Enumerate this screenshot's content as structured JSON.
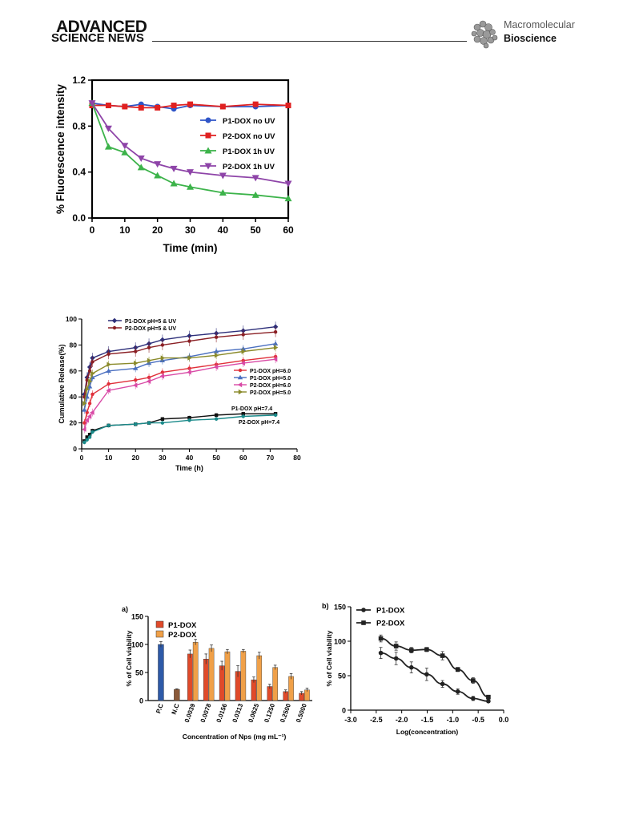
{
  "header": {
    "brand_line1": "ADVANCED",
    "brand_line2": "SCIENCE NEWS",
    "journal_line1": "Macromolecular",
    "journal_line2": "Bioscience",
    "colors": {
      "rule": "#333333",
      "journal_gray": "#555555"
    }
  },
  "chart_data": [
    {
      "type": "line",
      "id": "fluorescence",
      "title": "",
      "xlabel": "Time (min)",
      "ylabel": "% Fluorescence intensity",
      "xlim": [
        0,
        60
      ],
      "ylim": [
        0,
        1.2
      ],
      "xticks": [
        "0",
        "10",
        "20",
        "30",
        "40",
        "50",
        "60"
      ],
      "yticks": [
        "0.0",
        "0.4",
        "0.8",
        "1.2"
      ],
      "legend_position": "right-middle",
      "x": [
        0,
        5,
        10,
        15,
        20,
        25,
        30,
        40,
        50,
        60
      ],
      "series": [
        {
          "name": "P1-DOX no UV",
          "color": "#2f55c8",
          "marker": "circle",
          "values": [
            1.0,
            0.98,
            0.97,
            0.99,
            0.97,
            0.95,
            0.98,
            0.97,
            0.97,
            0.98
          ]
        },
        {
          "name": "P2-DOX no UV",
          "color": "#e02020",
          "marker": "square",
          "values": [
            0.98,
            0.98,
            0.97,
            0.96,
            0.96,
            0.98,
            0.99,
            0.97,
            0.99,
            0.98
          ]
        },
        {
          "name": "P1-DOX 1h UV",
          "color": "#3cb34a",
          "marker": "triangle-up",
          "values": [
            1.0,
            0.62,
            0.57,
            0.44,
            0.37,
            0.3,
            0.27,
            0.22,
            0.2,
            0.17
          ]
        },
        {
          "name": "P2-DOX 1h UV",
          "color": "#8e44a8",
          "marker": "triangle-down",
          "values": [
            1.0,
            0.78,
            0.63,
            0.52,
            0.47,
            0.43,
            0.4,
            0.37,
            0.35,
            0.3
          ]
        }
      ]
    },
    {
      "type": "line",
      "id": "release",
      "title": "",
      "xlabel": "Time (h)",
      "ylabel": "Cumulative Release(%)",
      "xlim": [
        0,
        80
      ],
      "ylim": [
        0,
        100
      ],
      "xticks": [
        "0",
        "10",
        "20",
        "30",
        "40",
        "50",
        "60",
        "70",
        "80"
      ],
      "yticks": [
        "0",
        "20",
        "40",
        "60",
        "80",
        "100"
      ],
      "x": [
        1,
        2,
        3,
        4,
        10,
        20,
        25,
        30,
        40,
        50,
        60,
        72
      ],
      "series": [
        {
          "name": "P1-DOX pH=5 & UV",
          "color": "#2d2f7a",
          "marker": "diamond",
          "legend": "top",
          "values": [
            42,
            55,
            63,
            70,
            75,
            78,
            81,
            84,
            87,
            89,
            91,
            94
          ],
          "error": 4
        },
        {
          "name": "P2-DOX pH=5 & UV",
          "color": "#8a1f24",
          "marker": "circle",
          "legend": "top",
          "values": [
            40,
            53,
            60,
            67,
            73,
            75,
            78,
            80,
            83,
            86,
            88,
            90
          ],
          "error": 4
        },
        {
          "name": "P1-DOX pH=6.0",
          "color": "#e0303a",
          "marker": "circle",
          "legend": "right",
          "values": [
            20,
            28,
            35,
            42,
            50,
            53,
            55,
            59,
            62,
            65,
            68,
            71
          ],
          "error": 3
        },
        {
          "name": "P1-DOX pH=5.0",
          "color": "#4a6fc0",
          "marker": "triangle-up",
          "legend": "right",
          "values": [
            30,
            40,
            48,
            55,
            60,
            62,
            66,
            68,
            71,
            75,
            77,
            81
          ],
          "error": 3
        },
        {
          "name": "P2-DOX pH=6.0",
          "color": "#d94aa6",
          "marker": "triangle-left",
          "legend": "right",
          "values": [
            15,
            22,
            25,
            28,
            45,
            49,
            52,
            56,
            59,
            63,
            66,
            69
          ],
          "error": 3
        },
        {
          "name": "P2-DOX pH=5.0",
          "color": "#8a8a2a",
          "marker": "triangle-right",
          "legend": "right",
          "values": [
            35,
            46,
            52,
            58,
            65,
            66,
            68,
            70,
            70,
            72,
            75,
            78
          ],
          "error": 3
        },
        {
          "name": "P1-DOX pH=7.4",
          "color": "#111111",
          "marker": "square",
          "legend": "inline-upper",
          "values": [
            6,
            9,
            11,
            14,
            18,
            19,
            20,
            23,
            24,
            26,
            27,
            27
          ],
          "error": 1.5
        },
        {
          "name": "P2-DOX pH=7.4",
          "color": "#1a8a8a",
          "marker": "circle",
          "legend": "inline-lower",
          "values": [
            5,
            7,
            9,
            13,
            18,
            19,
            20,
            20,
            22,
            23,
            25,
            26
          ],
          "error": 1.5
        }
      ]
    },
    {
      "type": "bar",
      "id": "viability_bar",
      "panel_label": "a)",
      "title": "",
      "xlabel": "Concentration of Nps (mg mL⁻¹)",
      "ylabel": "% of Cell viability",
      "ylim": [
        0,
        150
      ],
      "yticks": [
        "0",
        "50",
        "100",
        "150"
      ],
      "legend_position": "top-left",
      "categories": [
        "P.C",
        "N.C",
        "0.0039",
        "0.0078",
        "0.0156",
        "0.0313",
        "0.0625",
        "0.1250",
        "0.2500",
        "0.5000"
      ],
      "single_bars": [
        {
          "category": "P.C",
          "value": 100,
          "error": 5,
          "color": "#2e5aa8"
        },
        {
          "category": "N.C",
          "value": 20,
          "error": 1,
          "color": "#8b5a3a"
        }
      ],
      "series": [
        {
          "name": "P1-DOX",
          "color": "#e04a2a",
          "values": [
            null,
            null,
            83,
            74,
            62,
            52,
            37,
            25,
            16,
            13
          ],
          "errors": [
            0,
            0,
            7,
            9,
            8,
            10,
            5,
            4,
            3,
            3
          ]
        },
        {
          "name": "P2-DOX",
          "color": "#f0a048",
          "values": [
            null,
            null,
            104,
            93,
            87,
            88,
            80,
            59,
            43,
            19
          ],
          "errors": [
            0,
            0,
            5,
            6,
            4,
            3,
            6,
            4,
            5,
            3
          ]
        }
      ]
    },
    {
      "type": "scatter",
      "id": "viability_log",
      "panel_label": "b)",
      "title": "",
      "xlabel": "Log(concentration)",
      "ylabel": "% of Cell viability",
      "xlim": [
        -3.0,
        0.0
      ],
      "ylim": [
        0,
        150
      ],
      "xticks": [
        "-3.0",
        "-2.5",
        "-2.0",
        "-1.5",
        "-1.0",
        "-0.5",
        "0.0"
      ],
      "yticks": [
        "0",
        "50",
        "100",
        "150"
      ],
      "legend_position": "top-left",
      "series": [
        {
          "name": "P1-DOX",
          "color": "#222222",
          "marker": "circle",
          "x": [
            -2.41,
            -2.11,
            -1.81,
            -1.51,
            -1.2,
            -0.9,
            -0.6,
            -0.3
          ],
          "values": [
            83,
            75,
            62,
            52,
            38,
            27,
            17,
            13
          ],
          "errors": [
            8,
            9,
            8,
            9,
            5,
            4,
            3,
            2
          ]
        },
        {
          "name": "P2-DOX",
          "color": "#222222",
          "marker": "square",
          "x": [
            -2.41,
            -2.11,
            -1.81,
            -1.51,
            -1.2,
            -0.9,
            -0.6,
            -0.3
          ],
          "values": [
            104,
            93,
            87,
            88,
            79,
            59,
            43,
            19
          ],
          "errors": [
            5,
            6,
            4,
            3,
            6,
            3,
            4,
            2
          ]
        }
      ]
    }
  ]
}
